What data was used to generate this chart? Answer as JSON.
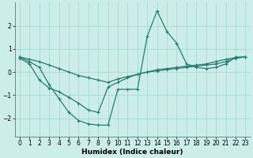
{
  "xlabel": "Humidex (Indice chaleur)",
  "bg_color": "#cceee8",
  "grid_color": "#aad8d2",
  "line_color": "#2a7a6e",
  "line1_x": [
    0,
    1,
    2,
    3,
    4,
    5,
    6,
    7,
    8,
    9,
    10,
    11,
    12,
    13,
    14,
    15,
    16,
    17,
    18,
    19,
    20,
    21,
    22,
    23
  ],
  "line1_y": [
    0.65,
    0.45,
    0.2,
    -0.55,
    -1.15,
    -1.75,
    -2.1,
    -2.25,
    -2.3,
    -2.3,
    -0.75,
    -0.75,
    -0.75,
    1.55,
    2.65,
    1.75,
    1.25,
    0.35,
    0.2,
    0.15,
    0.2,
    0.35,
    0.65,
    0.65
  ],
  "line2_x": [
    0,
    1,
    2,
    3,
    4,
    5,
    6,
    7,
    8,
    9,
    10,
    11,
    12,
    13,
    14,
    15,
    16,
    17,
    18,
    19,
    20,
    21,
    22,
    23
  ],
  "line2_y": [
    0.65,
    0.55,
    0.45,
    0.3,
    0.15,
    0.0,
    -0.15,
    -0.25,
    -0.35,
    -0.45,
    -0.3,
    -0.2,
    -0.1,
    0.0,
    0.05,
    0.1,
    0.15,
    0.2,
    0.25,
    0.3,
    0.35,
    0.45,
    0.6,
    0.65
  ],
  "line3_x": [
    0,
    1,
    2,
    3,
    4,
    5,
    6,
    7,
    8,
    9,
    10,
    11,
    12,
    13,
    14,
    15,
    16,
    17,
    18,
    19,
    20,
    21,
    22,
    23
  ],
  "line3_y": [
    0.6,
    0.35,
    -0.35,
    -0.7,
    -0.85,
    -1.1,
    -1.35,
    -1.65,
    -1.75,
    -0.65,
    -0.45,
    -0.25,
    -0.1,
    0.0,
    0.1,
    0.15,
    0.2,
    0.25,
    0.3,
    0.35,
    0.45,
    0.55,
    0.62,
    0.65
  ],
  "ylim": [
    -2.8,
    3.0
  ],
  "yticks": [
    -2,
    -1,
    0,
    1,
    2
  ],
  "xlim": [
    -0.5,
    23.5
  ],
  "xticks": [
    0,
    1,
    2,
    3,
    4,
    5,
    6,
    7,
    8,
    9,
    10,
    11,
    12,
    13,
    14,
    15,
    16,
    17,
    18,
    19,
    20,
    21,
    22,
    23
  ],
  "tick_fontsize": 5.5,
  "label_fontsize": 6.5
}
